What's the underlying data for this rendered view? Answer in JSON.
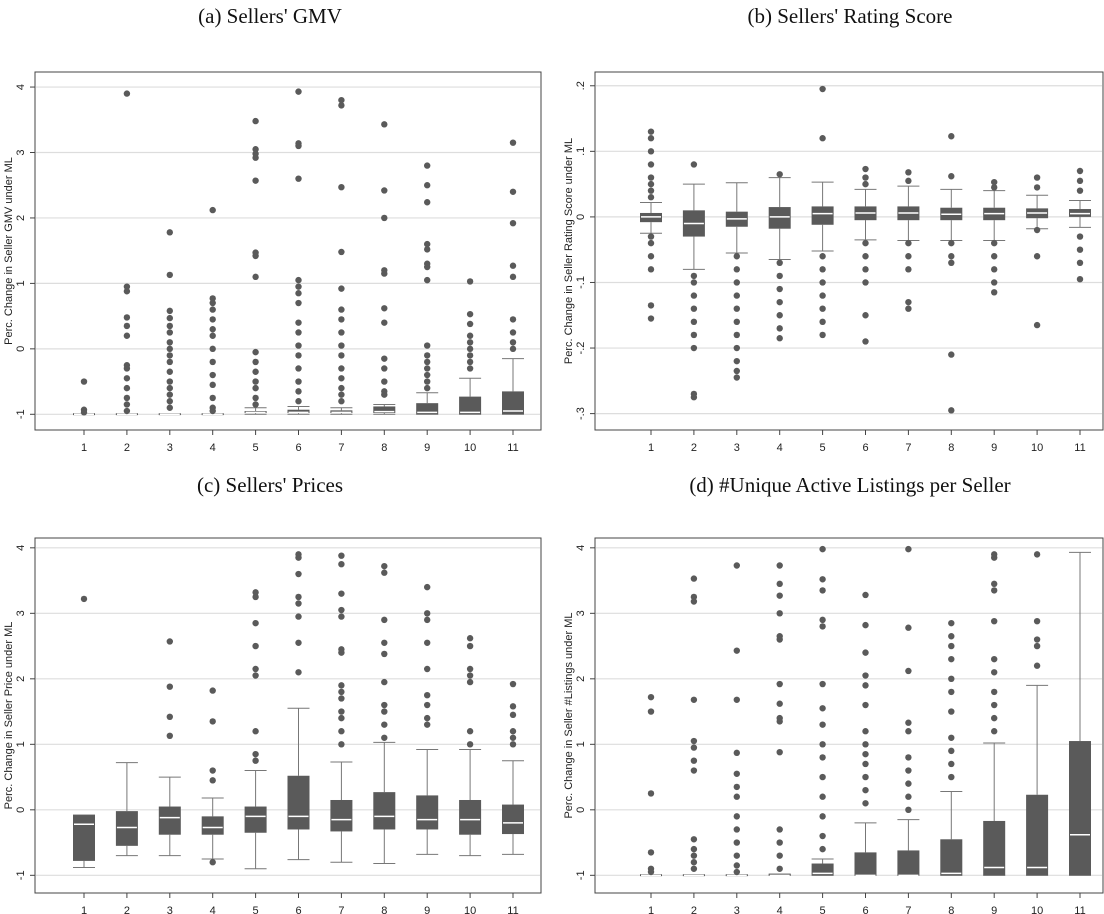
{
  "chart_data": [
    {
      "type": "box",
      "title": "(a) Sellers' GMV",
      "y_label": "Perc. Change in Seller GMV under ML",
      "categories": [
        "1",
        "2",
        "3",
        "4",
        "5",
        "6",
        "7",
        "8",
        "9",
        "10",
        "11"
      ],
      "ylim": [
        -1.24,
        4.23
      ],
      "yticks": [
        4,
        3,
        2,
        1,
        0,
        -1
      ],
      "grid": true,
      "color": "#5a5a5a",
      "boxes": [
        {
          "whisker_low": -1,
          "q1": -1,
          "median": -1,
          "q3": -0.99,
          "whisker_high": -0.99,
          "outliers": [
            -0.5,
            -0.93,
            -0.97
          ]
        },
        {
          "whisker_low": -1,
          "q1": -1,
          "median": -1,
          "q3": -0.99,
          "whisker_high": -0.99,
          "outliers": [
            3.9,
            0.95,
            0.88,
            0.48,
            0.35,
            0.2,
            -0.25,
            -0.3,
            -0.45,
            -0.6,
            -0.75,
            -0.85,
            -0.95
          ]
        },
        {
          "whisker_low": -1,
          "q1": -1,
          "median": -1,
          "q3": -0.99,
          "whisker_high": -0.99,
          "outliers": [
            1.78,
            1.13,
            0.58,
            0.47,
            0.35,
            0.25,
            0.1,
            0,
            -0.1,
            -0.2,
            -0.35,
            -0.5,
            -0.6,
            -0.7,
            -0.8,
            -0.9
          ]
        },
        {
          "whisker_low": -1,
          "q1": -1,
          "median": -1,
          "q3": -0.99,
          "whisker_high": -0.99,
          "outliers": [
            2.12,
            0.77,
            0.7,
            0.6,
            0.45,
            0.3,
            0.2,
            0,
            -0.2,
            -0.4,
            -0.55,
            -0.75,
            -0.9,
            -0.95
          ]
        },
        {
          "whisker_low": -1,
          "q1": -0.98,
          "median": -0.97,
          "q3": -0.95,
          "whisker_high": -0.9,
          "outliers": [
            3.48,
            3.05,
            2.98,
            2.92,
            2.57,
            1.47,
            1.42,
            1.1,
            -0.05,
            -0.2,
            -0.35,
            -0.5,
            -0.6,
            -0.75,
            -0.85
          ]
        },
        {
          "whisker_low": -1,
          "q1": -0.98,
          "median": -0.97,
          "q3": -0.93,
          "whisker_high": -0.88,
          "outliers": [
            3.93,
            3.14,
            3.1,
            2.6,
            1.05,
            0.95,
            0.85,
            0.7,
            0.4,
            0.25,
            0.05,
            -0.1,
            -0.3,
            -0.5,
            -0.65,
            -0.8
          ]
        },
        {
          "whisker_low": -1,
          "q1": -0.98,
          "median": -0.97,
          "q3": -0.94,
          "whisker_high": -0.9,
          "outliers": [
            3.8,
            3.72,
            2.47,
            1.48,
            0.92,
            0.6,
            0.45,
            0.25,
            0.05,
            -0.1,
            -0.3,
            -0.45,
            -0.6,
            -0.7,
            -0.8
          ]
        },
        {
          "whisker_low": -1,
          "q1": -0.98,
          "median": -0.96,
          "q3": -0.88,
          "whisker_high": -0.85,
          "outliers": [
            3.43,
            2.42,
            2.0,
            1.2,
            1.15,
            0.62,
            0.4,
            -0.15,
            -0.3,
            -0.5,
            -0.65,
            -0.7
          ]
        },
        {
          "whisker_low": -1,
          "q1": -1,
          "median": -0.97,
          "q3": -0.83,
          "whisker_high": -0.67,
          "outliers": [
            2.8,
            2.5,
            2.24,
            1.6,
            1.52,
            1.3,
            1.25,
            1.05,
            0.05,
            -0.1,
            -0.2,
            -0.3,
            -0.4,
            -0.5,
            -0.6
          ]
        },
        {
          "whisker_low": -1,
          "q1": -1,
          "median": -0.97,
          "q3": -0.73,
          "whisker_high": -0.45,
          "outliers": [
            1.03,
            0.53,
            0.38,
            0.2,
            0.1,
            0,
            -0.1,
            -0.2,
            -0.3
          ]
        },
        {
          "whisker_low": -1,
          "q1": -1,
          "median": -0.95,
          "q3": -0.65,
          "whisker_high": -0.15,
          "outliers": [
            3.15,
            2.4,
            1.92,
            1.27,
            1.1,
            0.45,
            0.25,
            0.1,
            0
          ]
        }
      ]
    },
    {
      "type": "box",
      "title": "(b) Sellers' Rating Score",
      "y_label": "Perc. Change in Seller Rating Score under ML",
      "categories": [
        "1",
        "2",
        "3",
        "4",
        "5",
        "6",
        "7",
        "8",
        "9",
        "10",
        "11"
      ],
      "ylim": [
        -0.325,
        0.221
      ],
      "yticks": [
        {
          "value": 0.2,
          "label": ".2"
        },
        {
          "value": 0.1,
          "label": ".1"
        },
        0,
        {
          "value": -0.1,
          "label": "-.1"
        },
        {
          "value": -0.2,
          "label": "-.2"
        },
        {
          "value": -0.3,
          "label": "-.3"
        }
      ],
      "grid": true,
      "color": "#5a5a5a",
      "boxes": [
        {
          "whisker_low": -0.025,
          "q1": -0.008,
          "median": 0,
          "q3": 0.006,
          "whisker_high": 0.022,
          "outliers": [
            0.13,
            0.12,
            0.1,
            0.08,
            0.06,
            0.05,
            0.04,
            0.03,
            -0.03,
            -0.04,
            -0.06,
            -0.08,
            -0.135,
            -0.155
          ]
        },
        {
          "whisker_low": -0.08,
          "q1": -0.03,
          "median": -0.01,
          "q3": 0.01,
          "whisker_high": 0.05,
          "outliers": [
            0.08,
            -0.09,
            -0.1,
            -0.12,
            -0.14,
            -0.16,
            -0.18,
            -0.2,
            -0.27,
            -0.275
          ]
        },
        {
          "whisker_low": -0.055,
          "q1": -0.015,
          "median": -0.003,
          "q3": 0.008,
          "whisker_high": 0.052,
          "outliers": [
            -0.06,
            -0.08,
            -0.1,
            -0.12,
            -0.14,
            -0.16,
            -0.18,
            -0.2,
            -0.22,
            -0.235,
            -0.245
          ]
        },
        {
          "whisker_low": -0.065,
          "q1": -0.018,
          "median": 0,
          "q3": 0.015,
          "whisker_high": 0.06,
          "outliers": [
            0.065,
            -0.07,
            -0.09,
            -0.11,
            -0.13,
            -0.15,
            -0.17,
            -0.185
          ]
        },
        {
          "whisker_low": -0.052,
          "q1": -0.012,
          "median": 0.005,
          "q3": 0.016,
          "whisker_high": 0.053,
          "outliers": [
            0.195,
            0.12,
            -0.06,
            -0.08,
            -0.1,
            -0.12,
            -0.14,
            -0.16,
            -0.18
          ]
        },
        {
          "whisker_low": -0.035,
          "q1": -0.005,
          "median": 0.006,
          "q3": 0.016,
          "whisker_high": 0.042,
          "outliers": [
            0.073,
            0.06,
            0.05,
            -0.04,
            -0.06,
            -0.08,
            -0.1,
            -0.15,
            -0.19
          ]
        },
        {
          "whisker_low": -0.036,
          "q1": -0.005,
          "median": 0.006,
          "q3": 0.016,
          "whisker_high": 0.047,
          "outliers": [
            0.068,
            0.055,
            -0.04,
            -0.06,
            -0.08,
            -0.13,
            -0.14
          ]
        },
        {
          "whisker_low": -0.036,
          "q1": -0.005,
          "median": 0.004,
          "q3": 0.014,
          "whisker_high": 0.042,
          "outliers": [
            0.123,
            0.062,
            -0.04,
            -0.06,
            -0.07,
            -0.21,
            -0.295
          ]
        },
        {
          "whisker_low": -0.036,
          "q1": -0.005,
          "median": 0.005,
          "q3": 0.014,
          "whisker_high": 0.04,
          "outliers": [
            0.053,
            0.045,
            -0.04,
            -0.06,
            -0.08,
            -0.1,
            -0.115
          ]
        },
        {
          "whisker_low": -0.018,
          "q1": -0.002,
          "median": 0.006,
          "q3": 0.013,
          "whisker_high": 0.033,
          "outliers": [
            0.06,
            0.045,
            -0.02,
            -0.06,
            -0.165
          ]
        },
        {
          "whisker_low": -0.016,
          "q1": 0,
          "median": 0.005,
          "q3": 0.012,
          "whisker_high": 0.025,
          "outliers": [
            0.07,
            0.055,
            0.04,
            -0.03,
            -0.05,
            -0.07,
            -0.095
          ]
        }
      ]
    },
    {
      "type": "box",
      "title": "(c) Sellers' Prices",
      "y_label": "Perc. Change in Seller Price under ML",
      "categories": [
        "1",
        "2",
        "3",
        "4",
        "5",
        "6",
        "7",
        "8",
        "9",
        "10",
        "11"
      ],
      "ylim": [
        -1.27,
        4.15
      ],
      "yticks": [
        4,
        3,
        2,
        1,
        0,
        -1
      ],
      "grid": true,
      "color": "#5a5a5a",
      "boxes": [
        {
          "whisker_low": -0.88,
          "q1": -0.78,
          "median": -0.22,
          "q3": -0.08,
          "whisker_high": -0.08,
          "outliers": [
            3.22
          ]
        },
        {
          "whisker_low": -0.7,
          "q1": -0.55,
          "median": -0.27,
          "q3": -0.02,
          "whisker_high": 0.72,
          "outliers": []
        },
        {
          "whisker_low": -0.7,
          "q1": -0.38,
          "median": -0.12,
          "q3": 0.05,
          "whisker_high": 0.5,
          "outliers": [
            2.57,
            1.88,
            1.42,
            1.13
          ]
        },
        {
          "whisker_low": -0.75,
          "q1": -0.38,
          "median": -0.27,
          "q3": -0.1,
          "whisker_high": 0.18,
          "outliers": [
            1.82,
            1.35,
            0.6,
            0.45,
            -0.8
          ]
        },
        {
          "whisker_low": -0.9,
          "q1": -0.35,
          "median": -0.1,
          "q3": 0.05,
          "whisker_high": 0.6,
          "outliers": [
            3.32,
            3.25,
            2.85,
            2.5,
            2.15,
            2.05,
            1.2,
            0.85,
            0.75
          ]
        },
        {
          "whisker_low": -0.76,
          "q1": -0.3,
          "median": -0.1,
          "q3": 0.52,
          "whisker_high": 1.55,
          "outliers": [
            3.9,
            3.85,
            3.6,
            3.25,
            3.15,
            2.95,
            2.55,
            2.1
          ]
        },
        {
          "whisker_low": -0.8,
          "q1": -0.33,
          "median": -0.15,
          "q3": 0.15,
          "whisker_high": 0.73,
          "outliers": [
            3.88,
            3.75,
            3.3,
            3.05,
            2.95,
            2.45,
            2.4,
            1.9,
            1.8,
            1.7,
            1.5,
            1.4,
            1.2,
            1.0
          ]
        },
        {
          "whisker_low": -0.82,
          "q1": -0.3,
          "median": -0.1,
          "q3": 0.27,
          "whisker_high": 1.03,
          "outliers": [
            3.72,
            3.62,
            2.9,
            2.55,
            2.38,
            1.95,
            1.6,
            1.5,
            1.3,
            1.1
          ]
        },
        {
          "whisker_low": -0.68,
          "q1": -0.3,
          "median": -0.15,
          "q3": 0.22,
          "whisker_high": 0.92,
          "outliers": [
            3.4,
            3.0,
            2.9,
            2.55,
            2.15,
            1.75,
            1.6,
            1.4,
            1.3
          ]
        },
        {
          "whisker_low": -0.7,
          "q1": -0.38,
          "median": -0.15,
          "q3": 0.15,
          "whisker_high": 0.92,
          "outliers": [
            2.62,
            2.5,
            2.15,
            2.05,
            1.95,
            1.2,
            1.0
          ]
        },
        {
          "whisker_low": -0.68,
          "q1": -0.37,
          "median": -0.2,
          "q3": 0.08,
          "whisker_high": 0.75,
          "outliers": [
            1.92,
            1.58,
            1.45,
            1.2,
            1.1,
            1.0
          ]
        }
      ]
    },
    {
      "type": "box",
      "title": "(d) #Unique Active Listings per Seller",
      "y_label": "Perc. Change in Seller #Listings under ML",
      "categories": [
        "1",
        "2",
        "3",
        "4",
        "5",
        "6",
        "7",
        "8",
        "9",
        "10",
        "11"
      ],
      "ylim": [
        -1.27,
        4.15
      ],
      "yticks": [
        4,
        3,
        2,
        1,
        0,
        -1
      ],
      "grid": true,
      "color": "#5a5a5a",
      "boxes": [
        {
          "whisker_low": -1,
          "q1": -1,
          "median": -1,
          "q3": -0.99,
          "whisker_high": -0.99,
          "outliers": [
            1.72,
            1.5,
            0.25,
            -0.65,
            -0.9,
            -0.95
          ]
        },
        {
          "whisker_low": -1,
          "q1": -1,
          "median": -1,
          "q3": -0.99,
          "whisker_high": -0.99,
          "outliers": [
            3.53,
            3.25,
            3.18,
            1.68,
            1.05,
            0.95,
            0.75,
            0.6,
            -0.45,
            -0.6,
            -0.7,
            -0.8,
            -0.9
          ]
        },
        {
          "whisker_low": -1,
          "q1": -1,
          "median": -1,
          "q3": -0.99,
          "whisker_high": -0.99,
          "outliers": [
            3.73,
            2.43,
            1.68,
            0.87,
            0.55,
            0.35,
            0.2,
            -0.1,
            -0.3,
            -0.5,
            -0.7,
            -0.85,
            -0.95
          ]
        },
        {
          "whisker_low": -1,
          "q1": -1,
          "median": -1,
          "q3": -0.98,
          "whisker_high": -0.98,
          "outliers": [
            3.73,
            3.45,
            3.27,
            3.0,
            2.65,
            2.6,
            1.92,
            1.62,
            1.4,
            1.35,
            0.88,
            -0.3,
            -0.5,
            -0.7,
            -0.9
          ]
        },
        {
          "whisker_low": -1,
          "q1": -1,
          "median": -0.97,
          "q3": -0.82,
          "whisker_high": -0.75,
          "outliers": [
            3.98,
            3.52,
            3.35,
            2.9,
            2.8,
            1.92,
            1.55,
            1.3,
            1.0,
            0.8,
            0.5,
            0.2,
            -0.1,
            -0.4,
            -0.6
          ]
        },
        {
          "whisker_low": -1,
          "q1": -1,
          "median": -1,
          "q3": -0.65,
          "whisker_high": -0.2,
          "outliers": [
            3.28,
            2.82,
            2.4,
            2.05,
            1.9,
            1.6,
            1.2,
            1.0,
            0.85,
            0.7,
            0.5,
            0.3,
            0.1
          ]
        },
        {
          "whisker_low": -1,
          "q1": -1,
          "median": -1,
          "q3": -0.62,
          "whisker_high": -0.15,
          "outliers": [
            3.98,
            2.78,
            2.12,
            1.33,
            1.2,
            0.8,
            0.6,
            0.4,
            0.2,
            0
          ]
        },
        {
          "whisker_low": -1,
          "q1": -1,
          "median": -0.97,
          "q3": -0.45,
          "whisker_high": 0.28,
          "outliers": [
            2.85,
            2.65,
            2.5,
            2.3,
            2.0,
            1.8,
            1.5,
            1.1,
            0.9,
            0.7,
            0.5
          ]
        },
        {
          "whisker_low": -1,
          "q1": -1,
          "median": -0.88,
          "q3": -0.17,
          "whisker_high": 1.02,
          "outliers": [
            3.9,
            3.85,
            3.45,
            3.35,
            2.88,
            2.3,
            2.1,
            1.8,
            1.6,
            1.4,
            1.2
          ]
        },
        {
          "whisker_low": -1,
          "q1": -1,
          "median": -0.88,
          "q3": 0.23,
          "whisker_high": 1.9,
          "outliers": [
            3.9,
            2.88,
            2.6,
            2.5,
            2.2
          ]
        },
        {
          "whisker_low": -1,
          "q1": -1,
          "median": -0.38,
          "q3": 1.05,
          "whisker_high": 3.93,
          "outliers": []
        }
      ]
    }
  ]
}
